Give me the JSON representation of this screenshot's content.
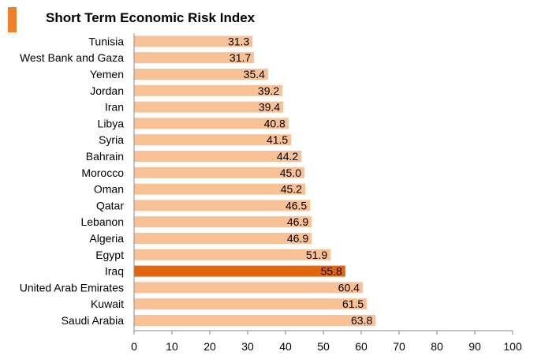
{
  "title": "Short Term Economic Risk Index",
  "colors": {
    "bar": "#f9c196",
    "highlight": "#e0670f",
    "marker": "#f07f2b",
    "axis": "#888888"
  },
  "chart_data": {
    "type": "bar",
    "orientation": "horizontal",
    "title": "Short Term Economic Risk Index",
    "xlabel": "",
    "ylabel": "",
    "xlim": [
      0,
      100
    ],
    "ticks": [
      0,
      10,
      20,
      30,
      40,
      50,
      60,
      70,
      80,
      90,
      100
    ],
    "grid": false,
    "highlight": "Iraq",
    "categories": [
      "Tunisia",
      "West Bank and Gaza",
      "Yemen",
      "Jordan",
      "Iran",
      "Libya",
      "Syria",
      "Bahrain",
      "Morocco",
      "Oman",
      "Qatar",
      "Lebanon",
      "Algeria",
      "Egypt",
      "Iraq",
      "United Arab Emirates",
      "Kuwait",
      "Saudi Arabia"
    ],
    "values": [
      31.3,
      31.7,
      35.4,
      39.2,
      39.4,
      40.8,
      41.5,
      44.2,
      45.0,
      45.2,
      46.5,
      46.9,
      46.9,
      51.9,
      55.8,
      60.4,
      61.5,
      63.8
    ],
    "value_labels": [
      "31.3",
      "31.7",
      "35.4",
      "39.2",
      "39.4",
      "40.8",
      "41.5",
      "44.2",
      "45.0",
      "45.2",
      "46.5",
      "46.9",
      "46.9",
      "51.9",
      "55.8",
      "60.4",
      "61.5",
      "63.8"
    ]
  }
}
